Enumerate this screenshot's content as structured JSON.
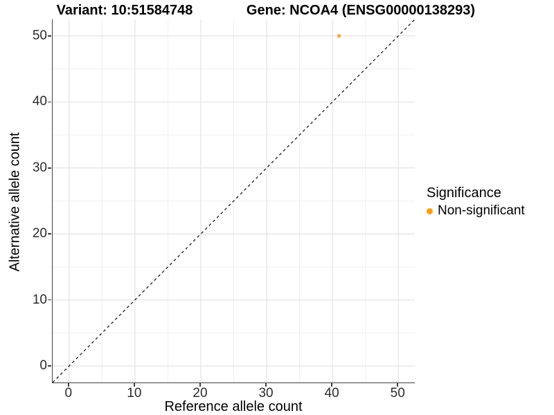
{
  "header": {
    "variant_title": "Variant: 10:51584748",
    "gene_title": "Gene: NCOA4 (ENSG00000138293)"
  },
  "chart_data": {
    "type": "scatter",
    "xlabel": "Reference allele count",
    "ylabel": "Alternative allele count",
    "xlim": [
      -2.5,
      52.5
    ],
    "ylim": [
      -2.5,
      52.5
    ],
    "xticks": [
      0,
      10,
      20,
      30,
      40,
      50
    ],
    "yticks": [
      0,
      10,
      20,
      30,
      40,
      50
    ],
    "grid": true,
    "minor_gridlines": [
      5,
      15,
      25,
      35,
      45
    ],
    "points": [
      {
        "x": 41,
        "y": 50,
        "series": "Non-significant"
      }
    ],
    "point_color": "#F9A743",
    "reference_line": {
      "type": "identity",
      "slope": 1,
      "intercept": 0,
      "style": "dashed",
      "color": "#1a1a1a"
    },
    "legend": {
      "title": "Significance",
      "position": "right",
      "items": [
        {
          "label": "Non-significant",
          "color": "#FB9E13"
        }
      ]
    },
    "colors": {
      "major_grid": "#e3e3e3",
      "minor_grid": "#efefef",
      "axis_line": "#3f3f3f"
    }
  }
}
